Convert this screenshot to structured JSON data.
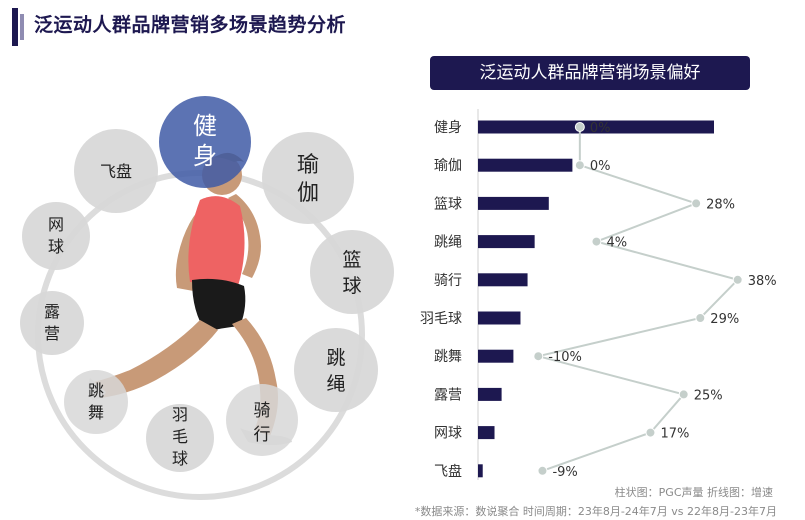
{
  "page_title": "泛运动人群品牌营销多场景趋势分析",
  "scene_wheel": {
    "highlight": "健身",
    "items": [
      "健身",
      "瑜伽",
      "篮球",
      "跳绳",
      "骑行",
      "羽毛球",
      "跳舞",
      "露营",
      "网球",
      "飞盘"
    ],
    "colors": {
      "highlight": "#3f5ba6",
      "bubble": "#d7d7d7",
      "ring": "#d9d9d9"
    }
  },
  "chart_data": {
    "type": "bar",
    "title": "泛运动人群品牌营销场景偏好",
    "categories": [
      "健身",
      "瑜伽",
      "篮球",
      "跳绳",
      "骑行",
      "羽毛球",
      "跳舞",
      "露营",
      "网球",
      "飞盘"
    ],
    "series": [
      {
        "name": "PGC声量",
        "type": "bar",
        "values": [
          100,
          40,
          30,
          24,
          21,
          18,
          15,
          10,
          7,
          2
        ]
      },
      {
        "name": "增速",
        "type": "line",
        "values": [
          0,
          0,
          28,
          4,
          38,
          29,
          -10,
          25,
          17,
          -9
        ],
        "labels": [
          "0%",
          "0%",
          "28%",
          "4%",
          "38%",
          "29%",
          "-10%",
          "25%",
          "17%",
          "-9%"
        ]
      }
    ],
    "orientation": "horizontal",
    "colors": {
      "bar": "#1d1850",
      "line": "#c5cfcb",
      "marker": "#c5cfcb"
    }
  },
  "legend_note": "柱状图：PGC声量 折线图：增速",
  "source_note": "*数据来源：数说聚合 时间周期：23年8月-24年7月 vs 22年8月-23年7月"
}
